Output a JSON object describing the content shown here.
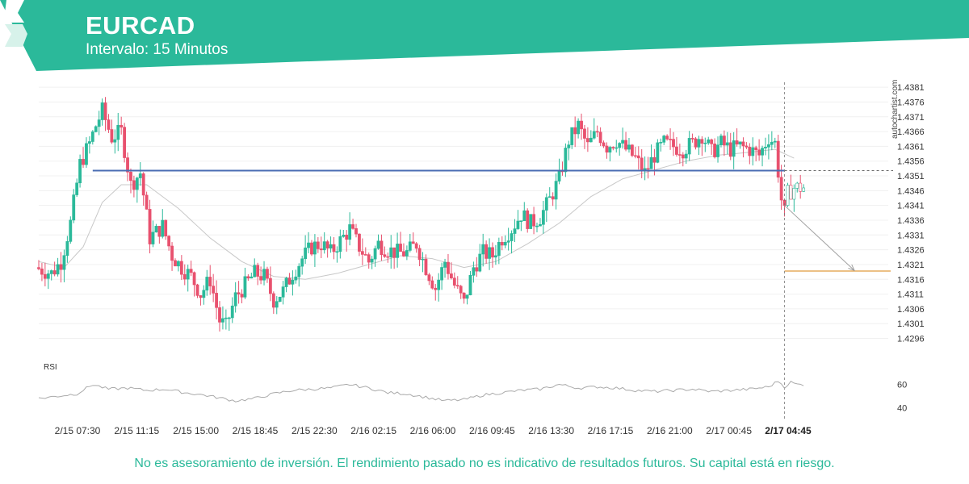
{
  "header": {
    "symbol": "EURCAD",
    "interval": "Intervalo: 15 Minutos",
    "band_color": "#2bb99a",
    "logo_icon": "autochartist-logo-icon"
  },
  "watermark": "autochartist.com",
  "disclaimer": "No es asesoramiento de inversión. El rendimiento pasado no es indicativo de resultados futuros. Su capital está en riesgo.",
  "colors": {
    "up": "#2bb99a",
    "down": "#e8516e",
    "support_line": "#4a6cb3",
    "target_line": "#e09a3e",
    "moving_average": "#c8c8c8",
    "rsi_line": "#aaaaaa",
    "projection": "#a0a0a0"
  },
  "chart_data": {
    "type": "candlestick",
    "instrument": "EURCAD",
    "timeframe": "15 Minutos",
    "price_axis": {
      "range": [
        1.4293,
        1.4382
      ],
      "ticks": [
        "1.4381",
        "1.4376",
        "1.4371",
        "1.4366",
        "1.4361",
        "1.4356",
        "1.4351",
        "1.4346",
        "1.4341",
        "1.4336",
        "1.4331",
        "1.4326",
        "1.4321",
        "1.4316",
        "1.4311",
        "1.4306",
        "1.4301",
        "1.4296"
      ]
    },
    "time_axis": {
      "ticks": [
        "2/15 07:30",
        "2/15 11:15",
        "2/15 15:00",
        "2/15 18:45",
        "2/15 22:30",
        "2/16 02:15",
        "2/16 06:00",
        "2/16 09:45",
        "2/16 13:30",
        "2/16 17:15",
        "2/16 21:00",
        "2/17 00:45",
        "2/17 04:45"
      ],
      "current": "2/17 04:45"
    },
    "price_path": [
      [
        0,
        1.432
      ],
      [
        5,
        1.4318
      ],
      [
        8,
        1.4322
      ],
      [
        11,
        1.4335
      ],
      [
        14,
        1.4355
      ],
      [
        17,
        1.4362
      ],
      [
        19,
        1.4368
      ],
      [
        21,
        1.4373
      ],
      [
        24,
        1.4364
      ],
      [
        27,
        1.4366
      ],
      [
        30,
        1.4348
      ],
      [
        33,
        1.4352
      ],
      [
        36,
        1.433
      ],
      [
        40,
        1.4334
      ],
      [
        43,
        1.4324
      ],
      [
        46,
        1.432
      ],
      [
        49,
        1.4317
      ],
      [
        52,
        1.4311
      ],
      [
        55,
        1.4316
      ],
      [
        58,
        1.4302
      ],
      [
        60,
        1.43
      ],
      [
        63,
        1.431
      ],
      [
        66,
        1.4314
      ],
      [
        69,
        1.4318
      ],
      [
        72,
        1.4317
      ],
      [
        75,
        1.4309
      ],
      [
        78,
        1.4312
      ],
      [
        81,
        1.4318
      ],
      [
        84,
        1.4323
      ],
      [
        87,
        1.4327
      ],
      [
        90,
        1.4328
      ],
      [
        93,
        1.4325
      ],
      [
        96,
        1.4329
      ],
      [
        99,
        1.4333
      ],
      [
        102,
        1.4327
      ],
      [
        105,
        1.4322
      ],
      [
        108,
        1.4328
      ],
      [
        111,
        1.4326
      ],
      [
        114,
        1.4325
      ],
      [
        117,
        1.4325
      ],
      [
        120,
        1.4328
      ],
      [
        123,
        1.432
      ],
      [
        126,
        1.4313
      ],
      [
        129,
        1.4322
      ],
      [
        132,
        1.4314
      ],
      [
        135,
        1.4308
      ],
      [
        138,
        1.432
      ],
      [
        141,
        1.4325
      ],
      [
        144,
        1.4324
      ],
      [
        147,
        1.433
      ],
      [
        150,
        1.4333
      ],
      [
        153,
        1.4338
      ],
      [
        156,
        1.4335
      ],
      [
        159,
        1.4337
      ],
      [
        162,
        1.4343
      ],
      [
        165,
        1.435
      ],
      [
        168,
        1.4363
      ],
      [
        171,
        1.4368
      ],
      [
        174,
        1.4361
      ],
      [
        177,
        1.4366
      ],
      [
        180,
        1.4361
      ],
      [
        183,
        1.4363
      ],
      [
        186,
        1.436
      ],
      [
        189,
        1.4357
      ],
      [
        192,
        1.4352
      ],
      [
        195,
        1.4358
      ],
      [
        198,
        1.4362
      ],
      [
        201,
        1.4361
      ],
      [
        204,
        1.436
      ],
      [
        207,
        1.4362
      ],
      [
        210,
        1.4365
      ],
      [
        213,
        1.4359
      ],
      [
        216,
        1.4362
      ],
      [
        219,
        1.436
      ],
      [
        222,
        1.4361
      ],
      [
        225,
        1.436
      ],
      [
        228,
        1.4358
      ],
      [
        231,
        1.4364
      ],
      [
        233,
        1.4362
      ],
      [
        235,
        1.4343
      ],
      [
        237,
        1.4345
      ],
      [
        239,
        1.4347
      ],
      [
        241,
        1.4347
      ]
    ],
    "candle_count": 242,
    "current_candle_index": 235,
    "moving_average": [
      [
        0,
        1.4322
      ],
      [
        8,
        1.432
      ],
      [
        14,
        1.4327
      ],
      [
        20,
        1.4342
      ],
      [
        26,
        1.4348
      ],
      [
        34,
        1.4348
      ],
      [
        44,
        1.434
      ],
      [
        54,
        1.433
      ],
      [
        64,
        1.4322
      ],
      [
        74,
        1.4317
      ],
      [
        84,
        1.4316
      ],
      [
        94,
        1.4318
      ],
      [
        104,
        1.4321
      ],
      [
        114,
        1.4324
      ],
      [
        124,
        1.4323
      ],
      [
        134,
        1.432
      ],
      [
        144,
        1.4322
      ],
      [
        154,
        1.4328
      ],
      [
        164,
        1.4335
      ],
      [
        174,
        1.4344
      ],
      [
        184,
        1.435
      ],
      [
        194,
        1.4353
      ],
      [
        204,
        1.4356
      ],
      [
        214,
        1.4358
      ],
      [
        224,
        1.4359
      ],
      [
        232,
        1.436
      ],
      [
        238,
        1.4357
      ]
    ],
    "levels": {
      "support": 1.43528,
      "support_start_index": 17,
      "target": 1.43188,
      "target_start_index": 235
    },
    "projection": {
      "from": [
        235,
        1.4341
      ],
      "to": [
        257,
        1.4319
      ]
    },
    "rsi": {
      "label": "RSI",
      "ticks": [
        60,
        40
      ],
      "range": [
        30,
        75
      ],
      "values": [
        [
          0,
          48
        ],
        [
          6,
          50
        ],
        [
          12,
          52
        ],
        [
          17,
          60
        ],
        [
          22,
          56
        ],
        [
          28,
          57
        ],
        [
          34,
          55
        ],
        [
          40,
          56
        ],
        [
          46,
          53
        ],
        [
          52,
          51
        ],
        [
          58,
          48
        ],
        [
          62,
          46
        ],
        [
          68,
          48
        ],
        [
          74,
          52
        ],
        [
          80,
          55
        ],
        [
          86,
          56
        ],
        [
          92,
          57
        ],
        [
          98,
          60
        ],
        [
          104,
          57
        ],
        [
          110,
          53
        ],
        [
          116,
          52
        ],
        [
          122,
          49
        ],
        [
          128,
          46
        ],
        [
          134,
          47
        ],
        [
          140,
          51
        ],
        [
          146,
          53
        ],
        [
          152,
          55
        ],
        [
          158,
          56
        ],
        [
          164,
          60
        ],
        [
          170,
          57
        ],
        [
          176,
          58
        ],
        [
          182,
          57
        ],
        [
          188,
          55
        ],
        [
          194,
          54
        ],
        [
          200,
          55
        ],
        [
          206,
          56
        ],
        [
          212,
          54
        ],
        [
          218,
          55
        ],
        [
          224,
          56
        ],
        [
          230,
          58
        ],
        [
          233,
          63
        ],
        [
          235,
          58
        ],
        [
          237,
          62
        ],
        [
          239,
          60
        ],
        [
          241,
          60
        ]
      ]
    }
  }
}
